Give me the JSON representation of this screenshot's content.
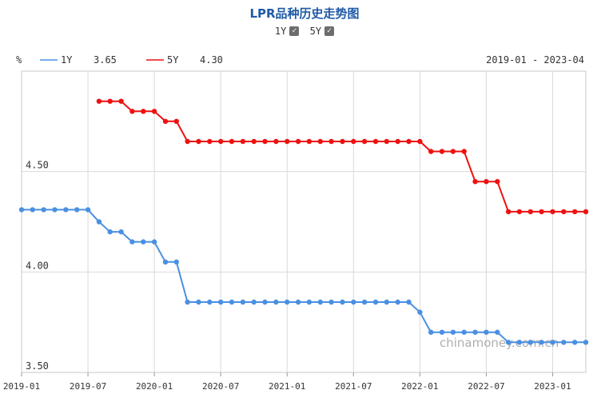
{
  "header": {
    "title": "LPR品种历史走势图",
    "toggles": [
      {
        "label": "1Y",
        "checked": true,
        "mark": "✓"
      },
      {
        "label": "5Y",
        "checked": true,
        "mark": "✓"
      }
    ]
  },
  "chart_data": {
    "type": "line",
    "ylabel": "%",
    "date_range": "2019-01 - 2023-04",
    "watermark": "chinamoney.com.cn",
    "ylim": [
      3.5,
      5.0
    ],
    "y_ticks": [
      "3.50",
      "4.00",
      "4.50"
    ],
    "x_ticks": [
      "2019-01",
      "2019-07",
      "2020-01",
      "2020-07",
      "2021-01",
      "2021-07",
      "2022-01",
      "2022-07",
      "2023-01"
    ],
    "grid": true,
    "legend_position": "top-left",
    "x": [
      "2019-01",
      "2019-02",
      "2019-03",
      "2019-04",
      "2019-05",
      "2019-06",
      "2019-07",
      "2019-08",
      "2019-09",
      "2019-10",
      "2019-11",
      "2019-12",
      "2020-01",
      "2020-02",
      "2020-03",
      "2020-04",
      "2020-05",
      "2020-06",
      "2020-07",
      "2020-08",
      "2020-09",
      "2020-10",
      "2020-11",
      "2020-12",
      "2021-01",
      "2021-02",
      "2021-03",
      "2021-04",
      "2021-05",
      "2021-06",
      "2021-07",
      "2021-08",
      "2021-09",
      "2021-10",
      "2021-11",
      "2021-12",
      "2022-01",
      "2022-02",
      "2022-03",
      "2022-04",
      "2022-05",
      "2022-06",
      "2022-07",
      "2022-08",
      "2022-09",
      "2022-10",
      "2022-11",
      "2022-12",
      "2023-01",
      "2023-02",
      "2023-03",
      "2023-04"
    ],
    "series": [
      {
        "name": "1Y",
        "latest": "3.65",
        "color": "#4a90e2",
        "values": [
          4.31,
          4.31,
          4.31,
          4.31,
          4.31,
          4.31,
          4.31,
          4.25,
          4.2,
          4.2,
          4.15,
          4.15,
          4.15,
          4.05,
          4.05,
          3.85,
          3.85,
          3.85,
          3.85,
          3.85,
          3.85,
          3.85,
          3.85,
          3.85,
          3.85,
          3.85,
          3.85,
          3.85,
          3.85,
          3.85,
          3.85,
          3.85,
          3.85,
          3.85,
          3.85,
          3.85,
          3.8,
          3.7,
          3.7,
          3.7,
          3.7,
          3.7,
          3.7,
          3.7,
          3.65,
          3.65,
          3.65,
          3.65,
          3.65,
          3.65,
          3.65,
          3.65
        ]
      },
      {
        "name": "5Y",
        "latest": "4.30",
        "color": "#ee1111",
        "values": [
          null,
          null,
          null,
          null,
          null,
          null,
          null,
          4.85,
          4.85,
          4.85,
          4.8,
          4.8,
          4.8,
          4.75,
          4.75,
          4.65,
          4.65,
          4.65,
          4.65,
          4.65,
          4.65,
          4.65,
          4.65,
          4.65,
          4.65,
          4.65,
          4.65,
          4.65,
          4.65,
          4.65,
          4.65,
          4.65,
          4.65,
          4.65,
          4.65,
          4.65,
          4.65,
          4.6,
          4.6,
          4.6,
          4.6,
          4.45,
          4.45,
          4.45,
          4.3,
          4.3,
          4.3,
          4.3,
          4.3,
          4.3,
          4.3,
          4.3
        ]
      }
    ]
  }
}
